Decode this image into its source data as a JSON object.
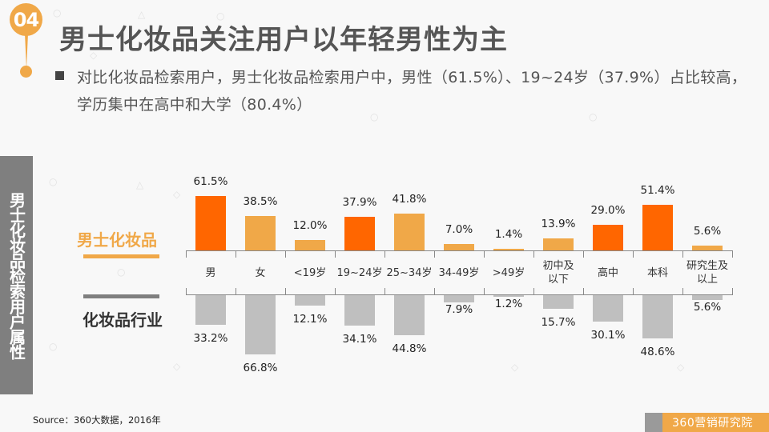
{
  "header": {
    "section_number": "04",
    "title": "男士化妆品关注用户以年轻男性为主"
  },
  "summary": {
    "text": "对比化妆品检索用户，男士化妆品检索用户中，男性（61.5%）、19~24岁（37.9%）占比较高，学历集中在高中和大学（80.4%）"
  },
  "sidebar": {
    "label": "男士化妆品检索用户属性"
  },
  "legend": {
    "top_label": "男士化妆品",
    "bottom_label": "化妆品行业"
  },
  "colors": {
    "highlight": "#ff6600",
    "primary_orange": "#f0a848",
    "industry_grey": "#bfbfbf",
    "sidebar_grey": "#7f7f7f"
  },
  "chart_data": {
    "type": "bar",
    "title": "男士化妆品检索用户属性",
    "xlabel": "",
    "ylabel": "",
    "layout": "diverging (top series above axis, bottom series below axis)",
    "grid": false,
    "legend_position": "left",
    "categories": [
      "男",
      "女",
      "<19岁",
      "19~24岁",
      "25~34岁",
      "34-49岁",
      ">49岁",
      "初中及以下",
      "高中",
      "本科",
      "研究生及以上"
    ],
    "category_display": [
      "男",
      "女",
      "<19岁",
      "19~24岁",
      "25~34岁",
      "34-49岁",
      ">49岁",
      "初中及\n以下",
      "高中",
      "本科",
      "研究生及\n以上"
    ],
    "series": [
      {
        "name": "男士化妆品",
        "values": [
          61.5,
          38.5,
          12.0,
          37.9,
          41.8,
          7.0,
          1.4,
          13.9,
          29.0,
          51.4,
          5.6
        ],
        "labels": [
          "61.5%",
          "38.5%",
          "12.0%",
          "37.9%",
          "41.8%",
          "7.0%",
          "1.4%",
          "13.9%",
          "29.0%",
          "51.4%",
          "5.6%"
        ],
        "highlighted": [
          true,
          false,
          false,
          true,
          false,
          false,
          false,
          false,
          true,
          true,
          false
        ]
      },
      {
        "name": "化妆品行业",
        "values": [
          33.2,
          66.8,
          12.1,
          34.1,
          44.8,
          7.9,
          1.2,
          15.7,
          30.1,
          48.6,
          5.6
        ],
        "labels": [
          "33.2%",
          "66.8%",
          "12.1%",
          "34.1%",
          "44.8%",
          "7.9%",
          "1.2%",
          "15.7%",
          "30.1%",
          "48.6%",
          "5.6%"
        ]
      }
    ],
    "unit": "%"
  },
  "footer": {
    "source": "Source：360大数据，2016年",
    "brand": "360营销研究院"
  }
}
